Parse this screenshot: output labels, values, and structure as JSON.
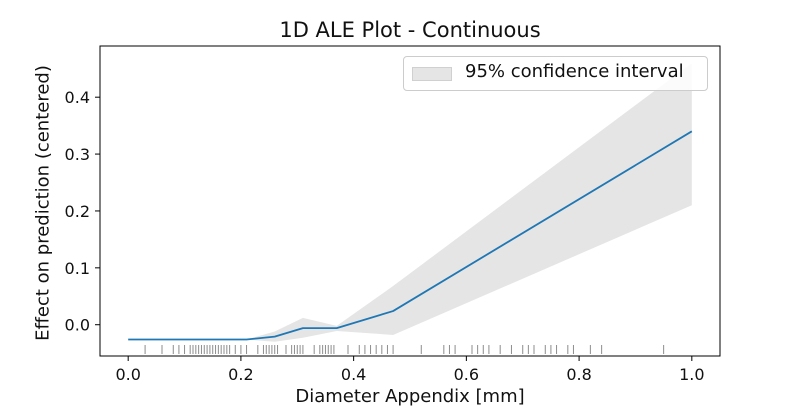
{
  "chart_data": {
    "type": "line",
    "title": "1D ALE Plot - Continuous",
    "xlabel": "Diameter Appendix [mm]",
    "ylabel": "Effect on prediction (centered)",
    "xlim": [
      -0.05,
      1.05
    ],
    "ylim": [
      -0.055,
      0.49
    ],
    "xticks": [
      0.0,
      0.2,
      0.4,
      0.6,
      0.8,
      1.0
    ],
    "xtick_labels": [
      "0.0",
      "0.2",
      "0.4",
      "0.6",
      "0.8",
      "1.0"
    ],
    "yticks": [
      0.0,
      0.1,
      0.2,
      0.3,
      0.4
    ],
    "ytick_labels": [
      "0.0",
      "0.1",
      "0.2",
      "0.3",
      "0.4"
    ],
    "grid": false,
    "legend": {
      "position": "top-right",
      "label": "95% confidence interval"
    },
    "series": [
      {
        "x": [
          0.0,
          0.21,
          0.26,
          0.31,
          0.37,
          0.47,
          1.0
        ],
        "y": [
          -0.026,
          -0.026,
          -0.021,
          -0.006,
          -0.006,
          0.024,
          0.34
        ],
        "color": "#1f77b4"
      }
    ],
    "confidence_band": {
      "color": "#e5e5e5",
      "x": [
        0.0,
        0.21,
        0.26,
        0.31,
        0.37,
        0.47,
        1.0
      ],
      "upper": [
        -0.026,
        -0.026,
        -0.012,
        0.012,
        -0.002,
        0.068,
        0.46
      ],
      "lower": [
        -0.026,
        -0.026,
        -0.03,
        -0.023,
        -0.011,
        -0.018,
        0.21
      ]
    },
    "rug": {
      "color": "#000000",
      "values": [
        0.03,
        0.06,
        0.08,
        0.09,
        0.1,
        0.11,
        0.115,
        0.12,
        0.125,
        0.13,
        0.135,
        0.14,
        0.145,
        0.15,
        0.155,
        0.16,
        0.165,
        0.17,
        0.175,
        0.18,
        0.19,
        0.2,
        0.21,
        0.23,
        0.24,
        0.245,
        0.25,
        0.255,
        0.26,
        0.265,
        0.28,
        0.29,
        0.295,
        0.3,
        0.305,
        0.31,
        0.33,
        0.34,
        0.345,
        0.35,
        0.355,
        0.36,
        0.365,
        0.39,
        0.41,
        0.42,
        0.43,
        0.44,
        0.45,
        0.46,
        0.47,
        0.52,
        0.56,
        0.57,
        0.58,
        0.61,
        0.62,
        0.63,
        0.64,
        0.66,
        0.68,
        0.7,
        0.71,
        0.72,
        0.74,
        0.75,
        0.76,
        0.78,
        0.79,
        0.82,
        0.84,
        0.95
      ]
    }
  }
}
